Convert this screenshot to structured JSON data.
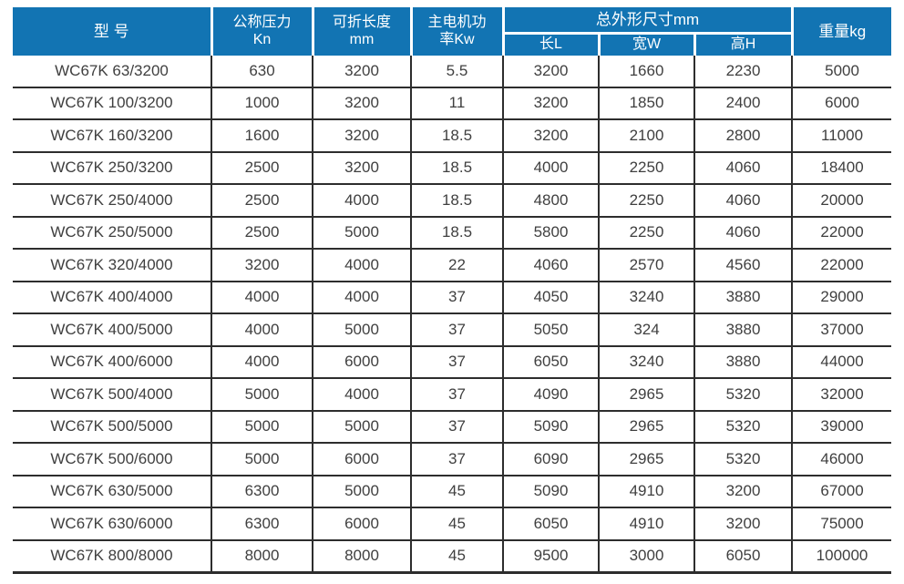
{
  "table": {
    "columns": {
      "model": "型 号",
      "pressure_line1": "公称压力",
      "pressure_line2": "Kn",
      "length_line1": "可折长度",
      "length_line2": "mm",
      "power_line1": "主电机功",
      "power_line2": "率Kw",
      "dimensions_group": "总外形尺寸mm",
      "dim_length": "长L",
      "dim_width": "宽W",
      "dim_height": "高H",
      "weight": "重量kg"
    },
    "column_keys": [
      "model",
      "pressure-kn",
      "fold-length-mm",
      "motor-power-kw",
      "dim-length-l",
      "dim-width-w",
      "dim-height-h",
      "weight-kg"
    ],
    "rows": [
      [
        "WC67K 63/3200",
        "630",
        "3200",
        "5.5",
        "3200",
        "1660",
        "2230",
        "5000"
      ],
      [
        "WC67K 100/3200",
        "1000",
        "3200",
        "11",
        "3200",
        "1850",
        "2400",
        "6000"
      ],
      [
        "WC67K 160/3200",
        "1600",
        "3200",
        "18.5",
        "3200",
        "2100",
        "2800",
        "11000"
      ],
      [
        "WC67K 250/3200",
        "2500",
        "3200",
        "18.5",
        "4000",
        "2250",
        "4060",
        "18400"
      ],
      [
        "WC67K 250/4000",
        "2500",
        "4000",
        "18.5",
        "4800",
        "2250",
        "4060",
        "20000"
      ],
      [
        "WC67K 250/5000",
        "2500",
        "5000",
        "18.5",
        "5800",
        "2250",
        "4060",
        "22000"
      ],
      [
        "WC67K 320/4000",
        "3200",
        "4000",
        "22",
        "4060",
        "2570",
        "4560",
        "22000"
      ],
      [
        "WC67K 400/4000",
        "4000",
        "4000",
        "37",
        "4050",
        "3240",
        "3880",
        "29000"
      ],
      [
        "WC67K 400/5000",
        "4000",
        "5000",
        "37",
        "5050",
        "324",
        "3880",
        "37000"
      ],
      [
        "WC67K 400/6000",
        "4000",
        "6000",
        "37",
        "6050",
        "3240",
        "3880",
        "44000"
      ],
      [
        "WC67K 500/4000",
        "5000",
        "4000",
        "37",
        "4090",
        "2965",
        "5320",
        "32000"
      ],
      [
        "WC67K 500/5000",
        "5000",
        "5000",
        "37",
        "5090",
        "2965",
        "5320",
        "39000"
      ],
      [
        "WC67K 500/6000",
        "5000",
        "6000",
        "37",
        "6090",
        "2965",
        "5320",
        "46000"
      ],
      [
        "WC67K 630/5000",
        "6300",
        "5000",
        "45",
        "5090",
        "4910",
        "3200",
        "67000"
      ],
      [
        "WC67K 630/6000",
        "6300",
        "6000",
        "45",
        "6050",
        "4910",
        "3200",
        "75000"
      ],
      [
        "WC67K 800/8000",
        "8000",
        "8000",
        "45",
        "9500",
        "3000",
        "6050",
        "100000"
      ]
    ]
  },
  "colors": {
    "header_bg": "#1274b3",
    "header_text": "#ffffff",
    "grid_line": "#2d2d2d",
    "body_text": "#3f3f3f"
  }
}
